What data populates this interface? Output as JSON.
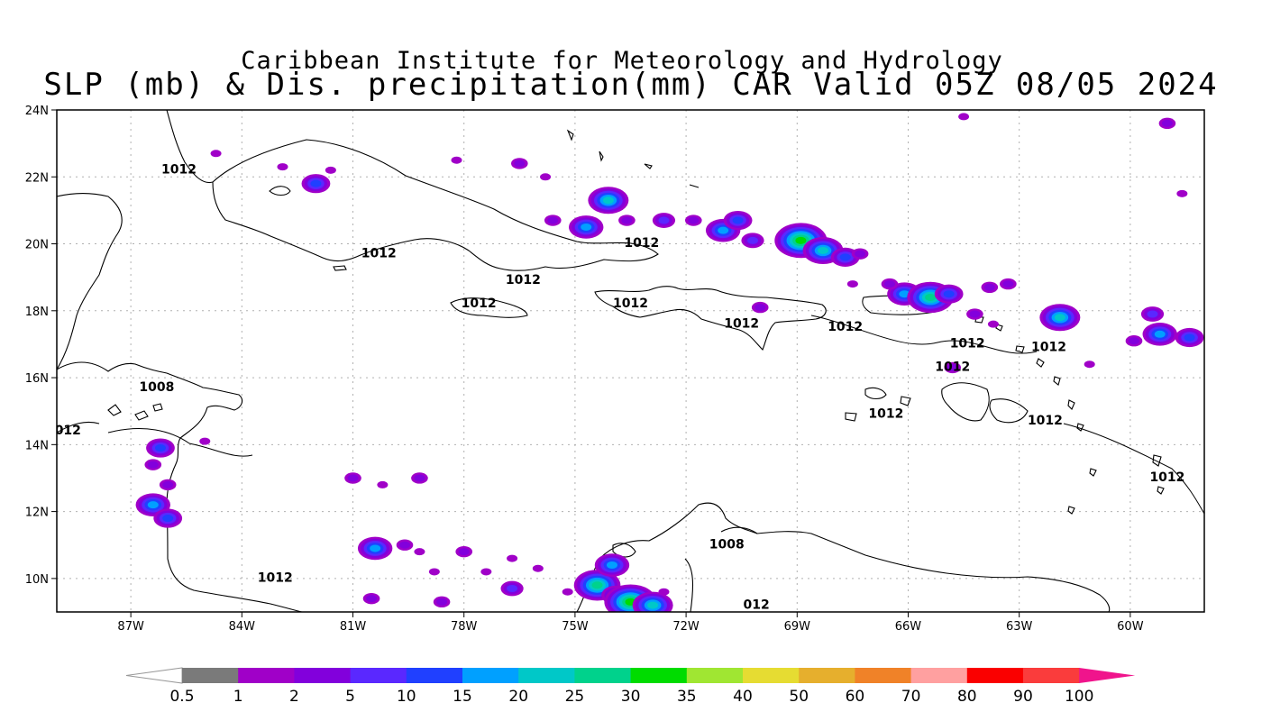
{
  "title": {
    "line1": "Caribbean Institute for Meteorology and Hydrology",
    "line2": "SLP (mb) & Dis. precipitation(mm) CAR Valid 05Z 08/05 2024"
  },
  "map": {
    "lon_range": [
      -89,
      -58
    ],
    "lat_range": [
      9,
      24
    ],
    "x_ticks": [
      {
        "lon": -87,
        "label": "87W"
      },
      {
        "lon": -84,
        "label": "84W"
      },
      {
        "lon": -81,
        "label": "81W"
      },
      {
        "lon": -78,
        "label": "78W"
      },
      {
        "lon": -75,
        "label": "75W"
      },
      {
        "lon": -72,
        "label": "72W"
      },
      {
        "lon": -69,
        "label": "69W"
      },
      {
        "lon": -66,
        "label": "66W"
      },
      {
        "lon": -63,
        "label": "63W"
      },
      {
        "lon": -60,
        "label": "60W"
      }
    ],
    "y_ticks": [
      {
        "lat": 24,
        "label": "24N"
      },
      {
        "lat": 22,
        "label": "22N"
      },
      {
        "lat": 20,
        "label": "20N"
      },
      {
        "lat": 18,
        "label": "18N"
      },
      {
        "lat": 16,
        "label": "16N"
      },
      {
        "lat": 14,
        "label": "14N"
      },
      {
        "lat": 12,
        "label": "12N"
      },
      {
        "lat": 10,
        "label": "10N"
      }
    ],
    "grid": "dotted",
    "isobar_labels": [
      {
        "text": "1012",
        "lon": -85.7,
        "lat": 22.1
      },
      {
        "text": "1012",
        "lon": -80.3,
        "lat": 19.6
      },
      {
        "text": "1012",
        "lon": -76.4,
        "lat": 18.8
      },
      {
        "text": "1012",
        "lon": -77.6,
        "lat": 18.1
      },
      {
        "text": "1012",
        "lon": -73.2,
        "lat": 19.9
      },
      {
        "text": "1012",
        "lon": -73.5,
        "lat": 18.1
      },
      {
        "text": "1012",
        "lon": -70.5,
        "lat": 17.5
      },
      {
        "text": "1012",
        "lon": -67.7,
        "lat": 17.4
      },
      {
        "text": "1012",
        "lon": -64.4,
        "lat": 16.9
      },
      {
        "text": "1012",
        "lon": -62.2,
        "lat": 16.8
      },
      {
        "text": "1012",
        "lon": -64.8,
        "lat": 16.2
      },
      {
        "text": "1012",
        "lon": -66.6,
        "lat": 14.8
      },
      {
        "text": "1012",
        "lon": -62.3,
        "lat": 14.6
      },
      {
        "text": "1012",
        "lon": -59.0,
        "lat": 12.9
      },
      {
        "text": "1008",
        "lon": -86.3,
        "lat": 15.6
      },
      {
        "text": "012",
        "lon": -88.7,
        "lat": 14.3
      },
      {
        "text": "1012",
        "lon": -83.1,
        "lat": 9.9
      },
      {
        "text": "1008",
        "lon": -70.9,
        "lat": 10.9
      },
      {
        "text": "012",
        "lon": -70.1,
        "lat": 9.1
      }
    ],
    "precip_cells": [
      {
        "lon": -84.7,
        "lat": 22.7,
        "level": 1
      },
      {
        "lon": -82.9,
        "lat": 22.3,
        "level": 1
      },
      {
        "lon": -82.0,
        "lat": 21.8,
        "level": 4
      },
      {
        "lon": -81.6,
        "lat": 22.2,
        "level": 1
      },
      {
        "lon": -78.2,
        "lat": 22.5,
        "level": 1
      },
      {
        "lon": -76.5,
        "lat": 22.4,
        "level": 2
      },
      {
        "lon": -75.8,
        "lat": 22.0,
        "level": 1
      },
      {
        "lon": -74.1,
        "lat": 21.3,
        "level": 6
      },
      {
        "lon": -73.6,
        "lat": 20.7,
        "level": 2
      },
      {
        "lon": -72.6,
        "lat": 20.7,
        "level": 3
      },
      {
        "lon": -71.8,
        "lat": 20.7,
        "level": 2
      },
      {
        "lon": -71.0,
        "lat": 20.4,
        "level": 5
      },
      {
        "lon": -70.6,
        "lat": 20.7,
        "level": 4
      },
      {
        "lon": -70.2,
        "lat": 20.1,
        "level": 3
      },
      {
        "lon": -75.6,
        "lat": 20.7,
        "level": 2
      },
      {
        "lon": -74.7,
        "lat": 20.5,
        "level": 5
      },
      {
        "lon": -68.9,
        "lat": 20.1,
        "level": 8
      },
      {
        "lon": -68.3,
        "lat": 19.8,
        "level": 6
      },
      {
        "lon": -67.7,
        "lat": 19.6,
        "level": 4
      },
      {
        "lon": -67.3,
        "lat": 19.7,
        "level": 2
      },
      {
        "lon": -66.1,
        "lat": 18.5,
        "level": 5
      },
      {
        "lon": -65.4,
        "lat": 18.4,
        "level": 7
      },
      {
        "lon": -64.9,
        "lat": 18.5,
        "level": 4
      },
      {
        "lon": -63.8,
        "lat": 18.7,
        "level": 2
      },
      {
        "lon": -63.3,
        "lat": 18.8,
        "level": 2
      },
      {
        "lon": -64.2,
        "lat": 17.9,
        "level": 2
      },
      {
        "lon": -63.7,
        "lat": 17.6,
        "level": 1
      },
      {
        "lon": -61.9,
        "lat": 17.8,
        "level": 6
      },
      {
        "lon": -59.9,
        "lat": 17.1,
        "level": 2
      },
      {
        "lon": -59.2,
        "lat": 17.3,
        "level": 5
      },
      {
        "lon": -58.4,
        "lat": 17.2,
        "level": 4
      },
      {
        "lon": -59.4,
        "lat": 17.9,
        "level": 3
      },
      {
        "lon": -66.5,
        "lat": 18.8,
        "level": 2
      },
      {
        "lon": -67.5,
        "lat": 18.8,
        "level": 1
      },
      {
        "lon": -70.0,
        "lat": 18.1,
        "level": 2
      },
      {
        "lon": -64.8,
        "lat": 16.3,
        "level": 2
      },
      {
        "lon": -61.1,
        "lat": 16.4,
        "level": 1
      },
      {
        "lon": -58.6,
        "lat": 21.5,
        "level": 1
      },
      {
        "lon": -59.0,
        "lat": 23.6,
        "level": 2
      },
      {
        "lon": -64.5,
        "lat": 23.8,
        "level": 1
      },
      {
        "lon": -86.2,
        "lat": 13.9,
        "level": 4
      },
      {
        "lon": -86.4,
        "lat": 13.4,
        "level": 2
      },
      {
        "lon": -86.0,
        "lat": 12.8,
        "level": 2
      },
      {
        "lon": -86.4,
        "lat": 12.2,
        "level": 5
      },
      {
        "lon": -86.0,
        "lat": 11.8,
        "level": 4
      },
      {
        "lon": -85.0,
        "lat": 14.1,
        "level": 1
      },
      {
        "lon": -80.4,
        "lat": 10.9,
        "level": 5
      },
      {
        "lon": -79.6,
        "lat": 11.0,
        "level": 2
      },
      {
        "lon": -79.2,
        "lat": 10.8,
        "level": 1
      },
      {
        "lon": -81.0,
        "lat": 13.0,
        "level": 2
      },
      {
        "lon": -80.2,
        "lat": 12.8,
        "level": 1
      },
      {
        "lon": -79.2,
        "lat": 13.0,
        "level": 2
      },
      {
        "lon": -78.8,
        "lat": 10.2,
        "level": 1
      },
      {
        "lon": -78.0,
        "lat": 10.8,
        "level": 2
      },
      {
        "lon": -77.4,
        "lat": 10.2,
        "level": 1
      },
      {
        "lon": -76.7,
        "lat": 10.6,
        "level": 1
      },
      {
        "lon": -76.0,
        "lat": 10.3,
        "level": 1
      },
      {
        "lon": -76.7,
        "lat": 9.7,
        "level": 3
      },
      {
        "lon": -78.6,
        "lat": 9.3,
        "level": 2
      },
      {
        "lon": -80.5,
        "lat": 9.4,
        "level": 2
      },
      {
        "lon": -75.2,
        "lat": 9.6,
        "level": 1
      },
      {
        "lon": -74.4,
        "lat": 9.8,
        "level": 7
      },
      {
        "lon": -73.9,
        "lat": 9.5,
        "level": 4
      },
      {
        "lon": -73.5,
        "lat": 9.3,
        "level": 8
      },
      {
        "lon": -72.9,
        "lat": 9.2,
        "level": 6
      },
      {
        "lon": -74.0,
        "lat": 10.4,
        "level": 5
      },
      {
        "lon": -72.6,
        "lat": 9.6,
        "level": 1
      }
    ]
  },
  "colorbar": {
    "labels": [
      "0.5",
      "1",
      "2",
      "5",
      "10",
      "15",
      "20",
      "25",
      "30",
      "35",
      "40",
      "50",
      "60",
      "70",
      "80",
      "90",
      "100"
    ],
    "colors": [
      "#7a7a7a",
      "#a000c8",
      "#8200dc",
      "#5a28ff",
      "#2040ff",
      "#00a0ff",
      "#00c8c8",
      "#00d28c",
      "#00dc00",
      "#a0e632",
      "#e6dc32",
      "#e6af2d",
      "#f08228",
      "#ffa0a0",
      "#fa0000",
      "#fa3c3c",
      "#f0148c"
    ],
    "under_color": "#ffffff"
  }
}
